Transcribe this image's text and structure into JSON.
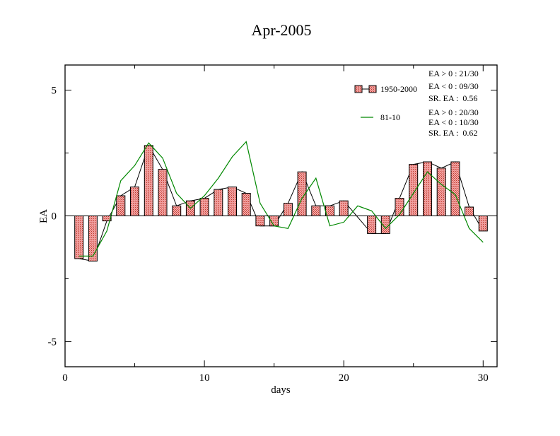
{
  "chart_data": {
    "type": "bar",
    "title": "Apr-2005",
    "xlabel": "days",
    "ylabel": "EA",
    "xlim": [
      0,
      31
    ],
    "ylim": [
      -6,
      6
    ],
    "xticks": [
      0,
      10,
      20,
      30
    ],
    "yticks": [
      -5,
      0,
      5
    ],
    "x": [
      1,
      2,
      3,
      4,
      5,
      6,
      7,
      8,
      9,
      10,
      11,
      12,
      13,
      14,
      15,
      16,
      17,
      18,
      19,
      20,
      21,
      22,
      23,
      24,
      25,
      26,
      27,
      28,
      29,
      30
    ],
    "series": [
      {
        "name": "1950-2000",
        "kind": "bar",
        "values": [
          -1.7,
          -1.8,
          -0.2,
          0.8,
          1.15,
          2.8,
          1.85,
          0.4,
          0.6,
          0.7,
          1.05,
          1.15,
          0.9,
          -0.4,
          -0.4,
          0.5,
          1.75,
          0.4,
          0.4,
          0.6,
          null,
          -0.7,
          -0.7,
          0.7,
          2.05,
          2.15,
          1.9,
          2.15,
          0.35,
          -0.6
        ],
        "color": "#e47171"
      },
      {
        "name": "81-10",
        "kind": "line",
        "values": [
          -1.6,
          -1.6,
          -0.6,
          1.4,
          2.0,
          2.9,
          2.3,
          0.9,
          0.3,
          0.8,
          1.5,
          2.35,
          2.95,
          0.5,
          -0.4,
          -0.5,
          0.7,
          1.5,
          -0.4,
          -0.25,
          0.4,
          0.2,
          -0.5,
          0.05,
          0.9,
          1.75,
          1.25,
          0.85,
          -0.5,
          -1.05
        ],
        "color": "#008800"
      }
    ],
    "legend": {
      "placement": "top-right",
      "entries": [
        "1950-2000",
        "81-10"
      ]
    },
    "stats": {
      "first": [
        "EA > 0 : 21/30",
        "EA < 0 : 09/30",
        "SR. EA :  0.56"
      ],
      "second": [
        "EA > 0 : 20/30",
        "EA < 0 : 10/30",
        "SR. EA :  0.62"
      ]
    },
    "grid": false
  }
}
